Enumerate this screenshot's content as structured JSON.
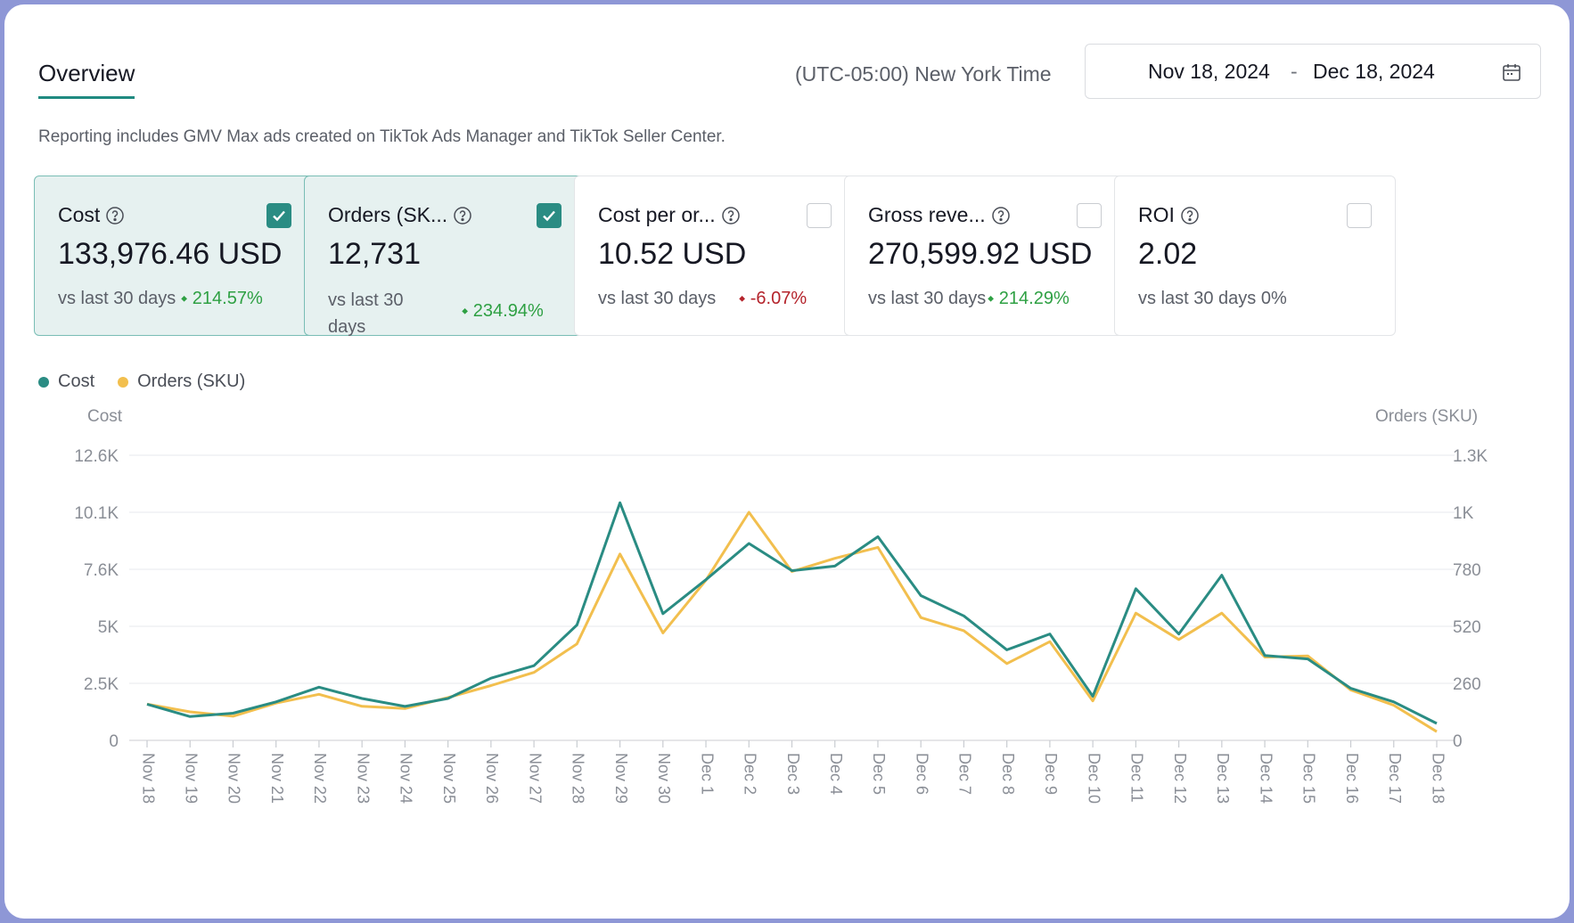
{
  "header": {
    "tab_label": "Overview",
    "timezone": "(UTC-05:00) New York Time",
    "date_start": "Nov 18, 2024",
    "date_separator": "-",
    "date_end": "Dec 18, 2024",
    "notice": "Reporting includes GMV Max ads created on TikTok Ads Manager and TikTok Seller Center."
  },
  "cards": [
    {
      "title": "Cost",
      "value": "133,976.46 USD",
      "compare": "vs last 30 days",
      "delta": "214.57%",
      "trend": "up",
      "checked": true
    },
    {
      "title": "Orders (SK...",
      "value": "12,731",
      "compare": "vs last 30 days",
      "delta": "234.94%",
      "trend": "up",
      "checked": true
    },
    {
      "title": "Cost per or...",
      "value": "10.52 USD",
      "compare": "vs last 30 days",
      "delta": "-6.07%",
      "trend": "down",
      "checked": false
    },
    {
      "title": "Gross reve...",
      "value": "270,599.92 USD",
      "compare": "vs last 30 days",
      "delta": "214.29%",
      "trend": "up",
      "checked": false
    },
    {
      "title": "ROI",
      "value": "2.02",
      "compare": "vs last 30 days",
      "delta": "0%",
      "trend": "none",
      "checked": false
    }
  ],
  "colors": {
    "accent": "#2a8c83",
    "cost_line": "#2a8c83",
    "orders_line": "#f2bf4e",
    "up": "#2ea043",
    "down": "#b4232b"
  },
  "icons": {
    "help": "help-circle-icon",
    "calendar": "calendar-icon",
    "checkbox": "check-icon"
  },
  "chart_data": {
    "type": "line",
    "legend_position": "top-left",
    "grid": true,
    "x": [
      "Nov 18",
      "Nov 19",
      "Nov 20",
      "Nov 21",
      "Nov 22",
      "Nov 23",
      "Nov 24",
      "Nov 25",
      "Nov 26",
      "Nov 27",
      "Nov 28",
      "Nov 29",
      "Nov 30",
      "Dec 1",
      "Dec 2",
      "Dec 3",
      "Dec 4",
      "Dec 5",
      "Dec 6",
      "Dec 7",
      "Dec 8",
      "Dec 9",
      "Dec 10",
      "Dec 11",
      "Dec 12",
      "Dec 13",
      "Dec 14",
      "Dec 15",
      "Dec 16",
      "Dec 17",
      "Dec 18"
    ],
    "y_left": {
      "label": "Cost",
      "ticks": [
        "0",
        "2.5K",
        "5K",
        "7.6K",
        "10.1K",
        "12.6K"
      ],
      "range": [
        0,
        12600
      ]
    },
    "y_right": {
      "label": "Orders (SKU)",
      "ticks": [
        "0",
        "260",
        "520",
        "780",
        "1K",
        "1.3K"
      ],
      "range": [
        0,
        1300
      ]
    },
    "series": [
      {
        "name": "Cost",
        "axis": "left",
        "values": [
          1600,
          1050,
          1200,
          1700,
          2350,
          1850,
          1500,
          1850,
          2750,
          3300,
          5100,
          10500,
          5600,
          7100,
          8700,
          7500,
          7700,
          9000,
          6400,
          5500,
          4000,
          4700,
          1950,
          6700,
          4700,
          7300,
          3750,
          3600,
          2300,
          1700,
          750
        ]
      },
      {
        "name": "Orders (SKU)",
        "axis": "right",
        "values": [
          165,
          130,
          110,
          170,
          210,
          155,
          145,
          195,
          250,
          310,
          440,
          850,
          490,
          730,
          1040,
          770,
          830,
          880,
          560,
          500,
          350,
          450,
          180,
          580,
          460,
          580,
          380,
          385,
          230,
          160,
          40
        ]
      }
    ]
  }
}
